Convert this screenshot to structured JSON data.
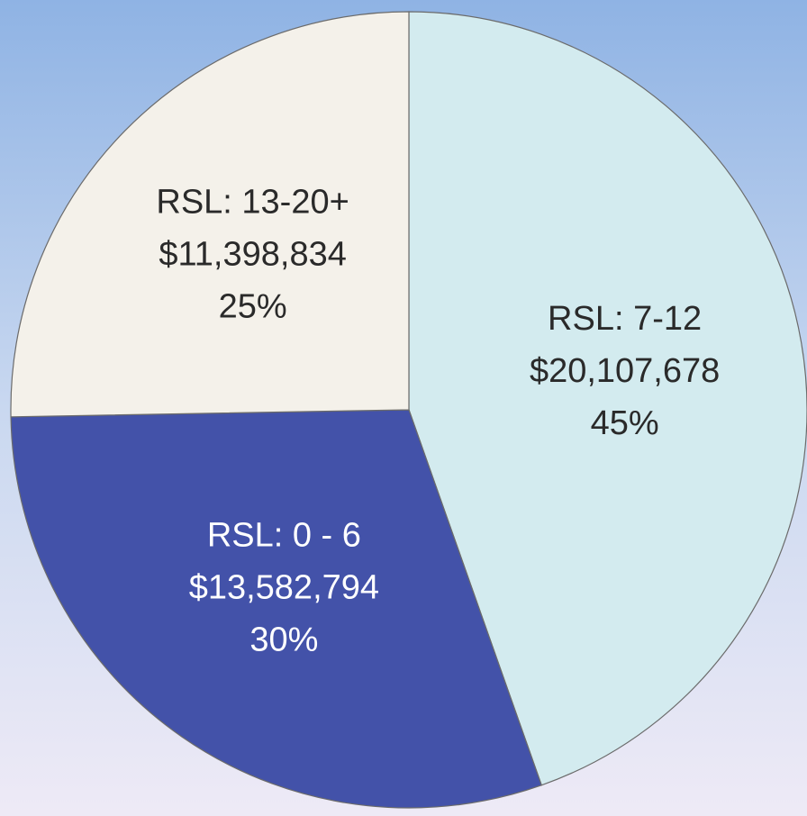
{
  "chart_data": {
    "type": "pie",
    "categories": [
      "RSL: 7-12",
      "RSL: 0 - 6",
      "RSL: 13-20+"
    ],
    "values": [
      20107678,
      13582794,
      11398834
    ],
    "value_labels": [
      "$20,107,678",
      "$13,582,794",
      "$11,398,834"
    ],
    "percent_labels": [
      "45%",
      "30%",
      "25%"
    ],
    "colors": [
      "#d3ebef",
      "#4352a9",
      "#f4f1ea"
    ],
    "label_colors": [
      "#2a2a2a",
      "#ffffff",
      "#2a2a2a"
    ]
  }
}
